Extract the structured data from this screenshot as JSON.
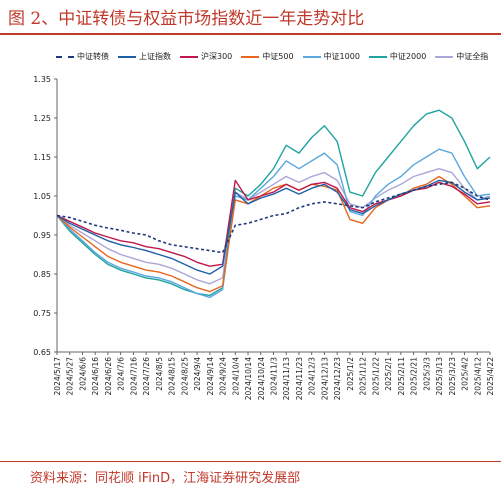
{
  "title": "图 2、中证转债与权益市场指数近一年走势对比",
  "source": "资料来源：同花顺 iFinD，江海证券研究发展部",
  "chart_data": {
    "type": "line",
    "title": "图 2、中证转债与权益市场指数近一年走势对比",
    "xlabel": "",
    "ylabel": "",
    "ylim": [
      0.65,
      1.35
    ],
    "yticks": [
      "0.65",
      "0.75",
      "0.85",
      "0.95",
      "1.05",
      "1.15",
      "1.25",
      "1.35"
    ],
    "grid": false,
    "legend_position": "top",
    "x": [
      "2024/5/17",
      "2024/5/27",
      "2024/6/6",
      "2024/6/16",
      "2024/6/26",
      "2024/7/6",
      "2024/7/16",
      "2024/7/26",
      "2024/8/5",
      "2024/8/15",
      "2024/8/25",
      "2024/9/4",
      "2024/9/14",
      "2024/9/24",
      "2024/10/4",
      "2024/10/14",
      "2024/10/24",
      "2024/11/3",
      "2024/11/13",
      "2024/11/23",
      "2024/12/3",
      "2024/12/13",
      "2024/12/23",
      "2025/1/2",
      "2025/1/12",
      "2025/1/22",
      "2025/2/1",
      "2025/2/11",
      "2025/2/21",
      "2025/3/3",
      "2025/3/13",
      "2025/3/23",
      "2025/4/2",
      "2025/4/12",
      "2025/4/22"
    ],
    "series": [
      {
        "name": "中证转债",
        "color": "#1F3A7A",
        "dashed": true,
        "values": [
          1.0,
          0.995,
          0.985,
          0.975,
          0.968,
          0.962,
          0.955,
          0.95,
          0.935,
          0.925,
          0.92,
          0.915,
          0.91,
          0.905,
          0.975,
          0.98,
          0.99,
          1.0,
          1.005,
          1.02,
          1.03,
          1.035,
          1.03,
          1.025,
          1.02,
          1.035,
          1.045,
          1.055,
          1.065,
          1.075,
          1.08,
          1.085,
          1.07,
          1.05,
          1.04
        ]
      },
      {
        "name": "上证指数",
        "color": "#1F5FA8",
        "dashed": false,
        "values": [
          1.0,
          0.98,
          0.965,
          0.95,
          0.935,
          0.925,
          0.918,
          0.91,
          0.9,
          0.89,
          0.875,
          0.86,
          0.85,
          0.87,
          1.06,
          1.03,
          1.045,
          1.055,
          1.07,
          1.055,
          1.07,
          1.08,
          1.06,
          1.015,
          1.005,
          1.025,
          1.04,
          1.055,
          1.065,
          1.075,
          1.09,
          1.085,
          1.06,
          1.04,
          1.045
        ]
      },
      {
        "name": "沪深300",
        "color": "#C0184A",
        "dashed": false,
        "values": [
          1.0,
          0.985,
          0.97,
          0.955,
          0.945,
          0.935,
          0.93,
          0.92,
          0.915,
          0.905,
          0.895,
          0.88,
          0.87,
          0.875,
          1.09,
          1.04,
          1.05,
          1.06,
          1.08,
          1.065,
          1.08,
          1.085,
          1.07,
          1.02,
          1.01,
          1.03,
          1.04,
          1.05,
          1.065,
          1.07,
          1.085,
          1.075,
          1.055,
          1.03,
          1.035
        ]
      },
      {
        "name": "中证500",
        "color": "#E8651B",
        "dashed": false,
        "values": [
          1.0,
          0.97,
          0.945,
          0.92,
          0.895,
          0.88,
          0.87,
          0.86,
          0.855,
          0.845,
          0.83,
          0.815,
          0.805,
          0.82,
          1.04,
          1.03,
          1.05,
          1.07,
          1.08,
          1.065,
          1.08,
          1.075,
          1.065,
          0.99,
          0.98,
          1.02,
          1.04,
          1.05,
          1.07,
          1.08,
          1.1,
          1.08,
          1.05,
          1.02,
          1.025
        ]
      },
      {
        "name": "中证1000",
        "color": "#5BA8DC",
        "dashed": false,
        "values": [
          1.0,
          0.965,
          0.935,
          0.905,
          0.88,
          0.865,
          0.855,
          0.845,
          0.84,
          0.83,
          0.815,
          0.8,
          0.79,
          0.81,
          1.05,
          1.04,
          1.07,
          1.1,
          1.14,
          1.12,
          1.14,
          1.16,
          1.13,
          1.01,
          1.0,
          1.05,
          1.08,
          1.1,
          1.13,
          1.15,
          1.17,
          1.16,
          1.1,
          1.05,
          1.055
        ]
      },
      {
        "name": "中证2000",
        "color": "#1FA3A0",
        "dashed": false,
        "values": [
          1.0,
          0.96,
          0.93,
          0.9,
          0.875,
          0.86,
          0.85,
          0.84,
          0.835,
          0.825,
          0.81,
          0.8,
          0.795,
          0.815,
          1.07,
          1.05,
          1.08,
          1.12,
          1.18,
          1.16,
          1.2,
          1.23,
          1.19,
          1.06,
          1.05,
          1.11,
          1.15,
          1.19,
          1.23,
          1.26,
          1.27,
          1.25,
          1.19,
          1.12,
          1.15
        ]
      },
      {
        "name": "中证全指",
        "color": "#A9A6D8",
        "dashed": false,
        "values": [
          1.0,
          0.975,
          0.955,
          0.935,
          0.915,
          0.9,
          0.89,
          0.88,
          0.875,
          0.865,
          0.85,
          0.835,
          0.825,
          0.84,
          1.06,
          1.04,
          1.06,
          1.08,
          1.1,
          1.085,
          1.1,
          1.11,
          1.09,
          1.03,
          1.02,
          1.045,
          1.065,
          1.08,
          1.1,
          1.11,
          1.12,
          1.11,
          1.07,
          1.04,
          1.05
        ]
      }
    ]
  }
}
